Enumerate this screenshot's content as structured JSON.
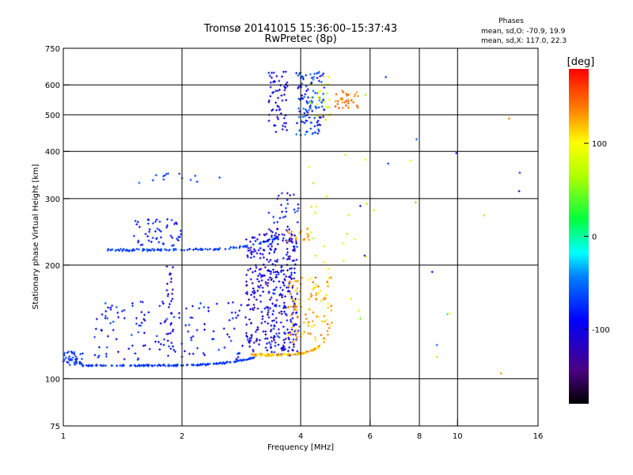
{
  "chart_data": {
    "type": "scatter",
    "title": "Tromsø 20141015 15:36:00–15:37:43",
    "subtitle": "RwPretec (8p)",
    "xlabel": "Frequency [MHz]",
    "ylabel": "Stationary phase Virtual Height [km]",
    "x_scale": "log",
    "y_scale": "log",
    "xlim": [
      1,
      16
    ],
    "ylim": [
      75,
      750
    ],
    "x_ticks": [
      1,
      2,
      4,
      6,
      8,
      10,
      16
    ],
    "x_tick_labels": [
      "1",
      "2",
      "4",
      "6",
      "8",
      "10",
      "16"
    ],
    "x_grid": [
      2,
      4,
      6,
      8,
      10
    ],
    "y_ticks": [
      75,
      100,
      200,
      300,
      400,
      500,
      600,
      750
    ],
    "y_tick_labels": [
      "75",
      "100",
      "200",
      "300",
      "400",
      "500",
      "600",
      "750"
    ],
    "y_grid": [
      100,
      200,
      300,
      400,
      500,
      600
    ],
    "grid": true,
    "phases_box": {
      "heading": "Phases",
      "line1": "mean, sd,O: -70.9, 19.9",
      "line2": "mean, sd,X: 117.0, 22.3"
    },
    "colorbar": {
      "label": "[deg]",
      "range": [
        -180,
        180
      ],
      "ticks": [
        100,
        0,
        -100
      ],
      "tick_labels": [
        "100",
        "0",
        "-100"
      ]
    },
    "clusters": [
      {
        "freq": [
          1.0,
          1.12
        ],
        "height": [
          108,
          118
        ],
        "phase": [
          -85,
          -60
        ],
        "count": 40,
        "shape": "band"
      },
      {
        "freq": [
          1.12,
          3.1
        ],
        "height": [
          108,
          114
        ],
        "phase": [
          -80,
          -60
        ],
        "count": 160,
        "shape": "curve_e_o"
      },
      {
        "freq": [
          1.2,
          3.0
        ],
        "height": [
          112,
          160
        ],
        "phase": [
          -110,
          -60
        ],
        "count": 140,
        "shape": "cloud"
      },
      {
        "freq": [
          1.28,
          3.5
        ],
        "height": [
          218,
          236
        ],
        "phase": [
          -80,
          -55
        ],
        "count": 120,
        "shape": "curve_f1"
      },
      {
        "freq": [
          1.5,
          2.0
        ],
        "height": [
          225,
          265
        ],
        "phase": [
          -100,
          -70
        ],
        "count": 50,
        "shape": "cloud"
      },
      {
        "freq": [
          1.5,
          2.5
        ],
        "height": [
          330,
          352
        ],
        "phase": [
          -75,
          -55
        ],
        "count": 14,
        "shape": "cloud"
      },
      {
        "freq": [
          1.83,
          1.9
        ],
        "height": [
          115,
          200
        ],
        "phase": [
          -130,
          -80
        ],
        "count": 30,
        "shape": "column"
      },
      {
        "freq": [
          2.9,
          3.9
        ],
        "height": [
          118,
          250
        ],
        "phase": [
          -140,
          -80
        ],
        "count": 320,
        "shape": "cloud"
      },
      {
        "freq": [
          3.3,
          3.95
        ],
        "height": [
          115,
          310
        ],
        "phase": [
          -120,
          -60
        ],
        "count": 120,
        "shape": "cloud"
      },
      {
        "freq": [
          3.0,
          4.6
        ],
        "height": [
          115,
          125
        ],
        "phase": [
          100,
          140
        ],
        "count": 80,
        "shape": "curve_e_x"
      },
      {
        "freq": [
          3.7,
          4.8
        ],
        "height": [
          125,
          190
        ],
        "phase": [
          100,
          150
        ],
        "count": 110,
        "shape": "cloud"
      },
      {
        "freq": [
          3.7,
          4.2
        ],
        "height": [
          230,
          250
        ],
        "phase": [
          120,
          140
        ],
        "count": 20,
        "shape": "cloud"
      },
      {
        "freq": [
          3.3,
          3.7
        ],
        "height": [
          450,
          650
        ],
        "phase": [
          -120,
          -80
        ],
        "count": 60,
        "shape": "cloud"
      },
      {
        "freq": [
          3.9,
          4.6
        ],
        "height": [
          440,
          650
        ],
        "phase": [
          -110,
          -40
        ],
        "count": 120,
        "shape": "cloud"
      },
      {
        "freq": [
          4.2,
          4.8
        ],
        "height": [
          480,
          640
        ],
        "phase": [
          60,
          110
        ],
        "count": 25,
        "shape": "cloud"
      },
      {
        "freq": [
          4.9,
          5.6
        ],
        "height": [
          520,
          580
        ],
        "phase": [
          120,
          160
        ],
        "count": 35,
        "shape": "cloud"
      },
      {
        "freq": [
          4.2,
          6.2
        ],
        "height": [
          150,
          400
        ],
        "phase": [
          60,
          100
        ],
        "count": 25,
        "shape": "sparse"
      },
      {
        "freq": [
          5.5,
          15.0
        ],
        "height": [
          100,
          650
        ],
        "phase": [
          -120,
          140
        ],
        "count": 20,
        "shape": "sparse"
      }
    ]
  }
}
